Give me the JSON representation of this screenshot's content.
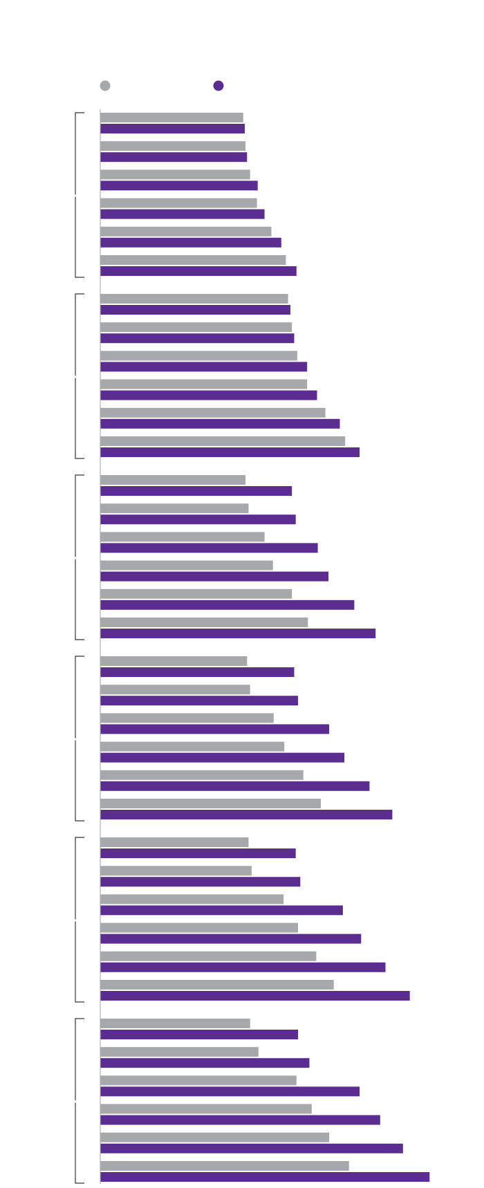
{
  "colors": {
    "series_1": "#a7a8aa",
    "series_2": "#5c2d91",
    "axis": "#b0b0b0",
    "bracket": "#333333"
  },
  "chart_data": {
    "type": "bar",
    "orientation": "horizontal",
    "title": "",
    "xlabel": "",
    "ylabel": "",
    "grid": false,
    "legend_position": "top",
    "series": [
      {
        "values": [
          188,
          191,
          197,
          206,
          225,
          244,
          247,
          252,
          259,
          272,
          296,
          322,
          191,
          195,
          216,
          227,
          252,
          273,
          193,
          197,
          228,
          242,
          267,
          290,
          195,
          199,
          241,
          260,
          284,
          307,
          197,
          208,
          258,
          278,
          301,
          327
        ]
      },
      {
        "values": [
          190,
          193,
          207,
          216,
          238,
          258,
          250,
          255,
          272,
          285,
          315,
          341,
          252,
          257,
          286,
          300,
          334,
          362,
          255,
          260,
          301,
          321,
          354,
          384,
          257,
          263,
          319,
          343,
          375,
          407,
          260,
          275,
          341,
          368,
          398,
          433
        ]
      }
    ],
    "group_sizes": [
      3,
      3,
      3,
      3,
      3,
      3,
      3,
      3,
      3,
      3,
      3,
      3
    ],
    "xlim": [
      0,
      460
    ]
  }
}
